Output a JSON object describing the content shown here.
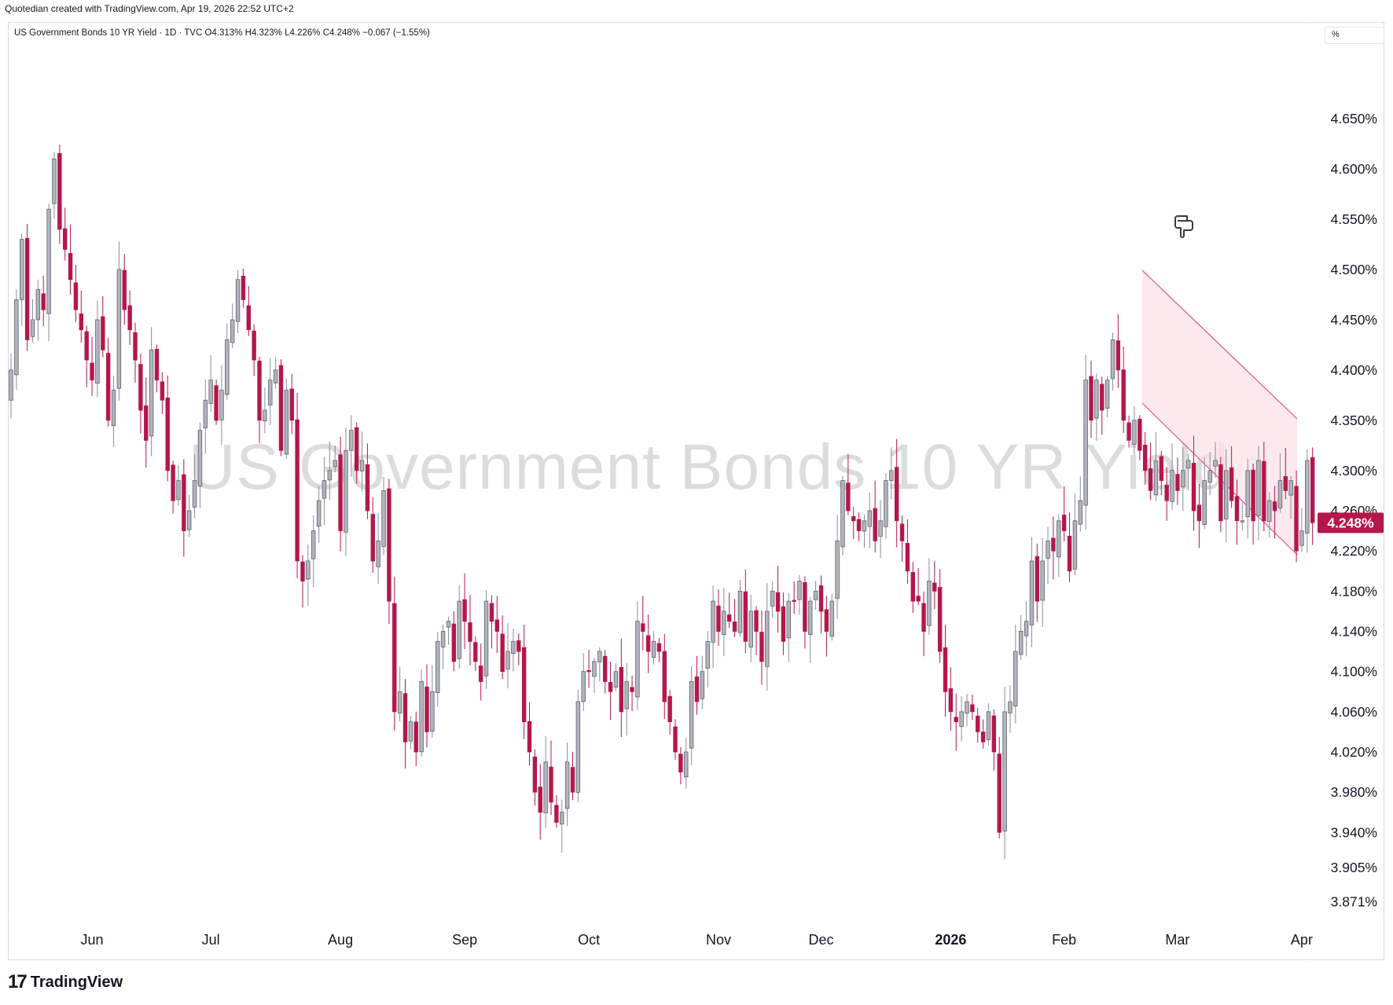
{
  "header": {
    "attribution": "Quotedian created with TradingView.com, Apr 19, 2026 22:52 UTC+2",
    "symbol_line": "US Government Bonds 10 YR Yield · 1D · TVC  O4.313%  H4.323%  L4.226%  C4.248%  −0.067 (−1.55%)",
    "unit_label": "%"
  },
  "watermark": "US Government Bonds 10 YR Yield",
  "brand": {
    "logo": "17",
    "name": "TradingView"
  },
  "icons": {
    "marker": "pointing-hand-icon"
  },
  "colors": {
    "up": "#b2b5be",
    "down": "#b5174a",
    "last_price_bg": "#b5174a",
    "channel_fill": "#f9e1e8",
    "channel_line": "#e5547a"
  },
  "chart_data": {
    "type": "candlestick",
    "title": "US Government Bonds 10 YR Yield",
    "interval": "1D",
    "source": "TVC",
    "ohlc": {
      "open": 4.313,
      "high": 4.323,
      "low": 4.226,
      "close": 4.248,
      "change": -0.067,
      "change_pct": -1.55
    },
    "ylim": [
      3.855,
      4.715
    ],
    "y_ticks": [
      "4.650%",
      "4.600%",
      "4.550%",
      "4.500%",
      "4.450%",
      "4.400%",
      "4.350%",
      "4.300%",
      "4.260%",
      "4.220%",
      "4.180%",
      "4.140%",
      "4.100%",
      "4.060%",
      "4.020%",
      "3.980%",
      "3.940%",
      "3.905%",
      "3.871%"
    ],
    "y_tick_values": [
      4.65,
      4.6,
      4.55,
      4.5,
      4.45,
      4.4,
      4.35,
      4.3,
      4.26,
      4.22,
      4.18,
      4.14,
      4.1,
      4.06,
      4.02,
      3.98,
      3.94,
      3.905,
      3.871
    ],
    "x_labels": [
      {
        "label": "Jun",
        "day": 15,
        "bold": false
      },
      {
        "label": "Jul",
        "day": 37,
        "bold": false
      },
      {
        "label": "Aug",
        "day": 61,
        "bold": false
      },
      {
        "label": "Sep",
        "day": 84,
        "bold": false
      },
      {
        "label": "Oct",
        "day": 107,
        "bold": false
      },
      {
        "label": "Nov",
        "day": 131,
        "bold": false
      },
      {
        "label": "Dec",
        "day": 150,
        "bold": false
      },
      {
        "label": "2026",
        "day": 174,
        "bold": true
      },
      {
        "label": "Feb",
        "day": 195,
        "bold": false
      },
      {
        "label": "Mar",
        "day": 216,
        "bold": false
      },
      {
        "label": "Apr",
        "day": 239,
        "bold": false
      }
    ],
    "last_price": {
      "label": "4.248%",
      "value": 4.248
    },
    "closes": [
      4.4,
      4.47,
      4.53,
      4.43,
      4.45,
      4.48,
      4.46,
      4.56,
      4.61,
      4.54,
      4.52,
      4.49,
      4.46,
      4.44,
      4.41,
      4.39,
      4.45,
      4.42,
      4.35,
      4.38,
      4.5,
      4.46,
      4.44,
      4.41,
      4.36,
      4.33,
      4.42,
      4.39,
      4.37,
      4.3,
      4.27,
      4.29,
      4.24,
      4.26,
      4.29,
      4.34,
      4.37,
      4.39,
      4.35,
      4.38,
      4.43,
      4.45,
      4.49,
      4.47,
      4.44,
      4.41,
      4.35,
      4.36,
      4.39,
      4.4,
      4.32,
      4.38,
      4.35,
      4.21,
      4.19,
      4.21,
      4.24,
      4.27,
      4.29,
      4.3,
      4.31,
      4.24,
      4.32,
      4.34,
      4.3,
      4.31,
      4.26,
      4.21,
      4.23,
      4.28,
      4.17,
      4.06,
      4.08,
      4.03,
      4.05,
      4.02,
      4.09,
      4.04,
      4.08,
      4.13,
      4.14,
      4.15,
      4.11,
      4.17,
      4.15,
      4.13,
      4.11,
      4.09,
      4.17,
      4.15,
      4.14,
      4.1,
      4.12,
      4.13,
      4.12,
      4.05,
      4.02,
      3.98,
      3.96,
      4.01,
      3.97,
      3.95,
      3.96,
      4.01,
      3.98,
      4.07,
      4.1,
      4.1,
      4.11,
      4.12,
      4.09,
      4.08,
      4.1,
      4.06,
      4.09,
      4.08,
      4.15,
      4.14,
      4.12,
      4.13,
      4.12,
      4.07,
      4.05,
      4.02,
      4.0,
      4.02,
      4.09,
      4.07,
      4.1,
      4.13,
      4.17,
      4.14,
      4.16,
      4.15,
      4.14,
      4.18,
      4.13,
      4.16,
      4.14,
      4.11,
      4.16,
      4.18,
      4.16,
      4.13,
      4.17,
      4.17,
      4.19,
      4.14,
      4.17,
      4.18,
      4.16,
      4.14,
      4.17,
      4.23,
      4.29,
      4.26,
      4.25,
      4.24,
      4.25,
      4.26,
      4.23,
      4.25,
      4.29,
      4.3,
      4.25,
      4.23,
      4.2,
      4.17,
      4.17,
      4.14,
      4.19,
      4.18,
      4.12,
      4.08,
      4.06,
      4.05,
      4.06,
      4.07,
      4.06,
      4.04,
      4.03,
      4.06,
      4.02,
      3.94,
      4.06,
      4.07,
      4.12,
      4.14,
      4.15,
      4.21,
      4.17,
      4.21,
      4.23,
      4.22,
      4.25,
      4.24,
      4.2,
      4.25,
      4.27,
      4.39,
      4.35,
      4.39,
      4.36,
      4.39,
      4.43,
      4.4,
      4.35,
      4.33,
      4.35,
      4.32,
      4.3,
      4.28,
      4.31,
      4.29,
      4.27,
      4.3,
      4.28,
      4.3,
      4.31,
      4.26,
      4.25,
      4.29,
      4.3,
      4.31,
      4.25,
      4.3,
      4.27,
      4.25,
      4.25,
      4.3,
      4.25,
      4.31,
      4.25,
      4.27,
      4.26,
      4.29,
      4.28,
      4.29,
      4.22,
      4.24,
      4.31,
      4.248
    ]
  }
}
